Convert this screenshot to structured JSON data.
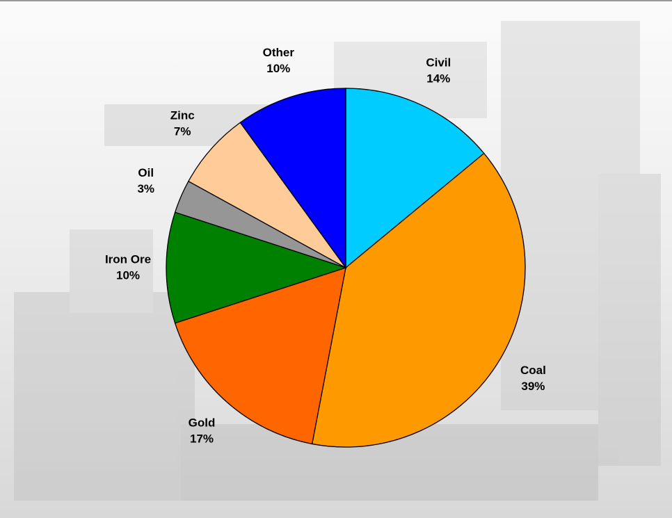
{
  "chart_data": {
    "type": "pie",
    "categories": [
      "Civil",
      "Coal",
      "Gold",
      "Iron Ore",
      "Oil",
      "Zinc",
      "Other"
    ],
    "values": [
      14,
      39,
      17,
      10,
      3,
      7,
      10
    ],
    "value_labels": [
      "14%",
      "39%",
      "17%",
      "10%",
      "3%",
      "7%",
      "10%"
    ],
    "colors": [
      "#00ccff",
      "#ff9900",
      "#ff6600",
      "#008000",
      "#969696",
      "#ffcc99",
      "#0000ff"
    ]
  }
}
